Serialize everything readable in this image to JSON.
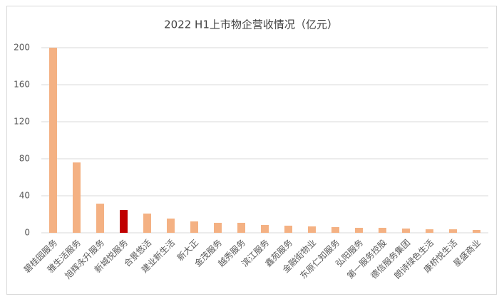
{
  "chart_data": {
    "type": "bar",
    "title": "2022 H1上市物企营收情况（亿元）",
    "categories": [
      "碧桂园服务",
      "雅生活服务",
      "旭辉永升服务",
      "新城悦服务",
      "合景悠活",
      "建业新生活",
      "新大正",
      "金茂服务",
      "越秀服务",
      "滨江服务",
      "鑫苑服务",
      "金融街物业",
      "东原仁知服务",
      "弘阳服务",
      "第一服务控股",
      "德信服务集团",
      "朗诗绿色生活",
      "康桥悦生活",
      "星盛商业"
    ],
    "values": [
      200,
      76,
      31.5,
      24.6,
      20.8,
      15.4,
      12.3,
      10.8,
      10.8,
      8.5,
      7.7,
      6.9,
      6.2,
      5.4,
      5.4,
      4.6,
      3.8,
      3.8,
      3.1
    ],
    "colors": [
      "#f4b183",
      "#f4b183",
      "#f4b183",
      "#c00000",
      "#f4b183",
      "#f4b183",
      "#f4b183",
      "#f4b183",
      "#f4b183",
      "#f4b183",
      "#f4b183",
      "#f4b183",
      "#f4b183",
      "#f4b183",
      "#f4b183",
      "#f4b183",
      "#f4b183",
      "#f4b183",
      "#f4b183"
    ],
    "ylim": [
      0,
      200
    ],
    "yticks": [
      0,
      40,
      80,
      120,
      160,
      200
    ],
    "grid": true
  }
}
